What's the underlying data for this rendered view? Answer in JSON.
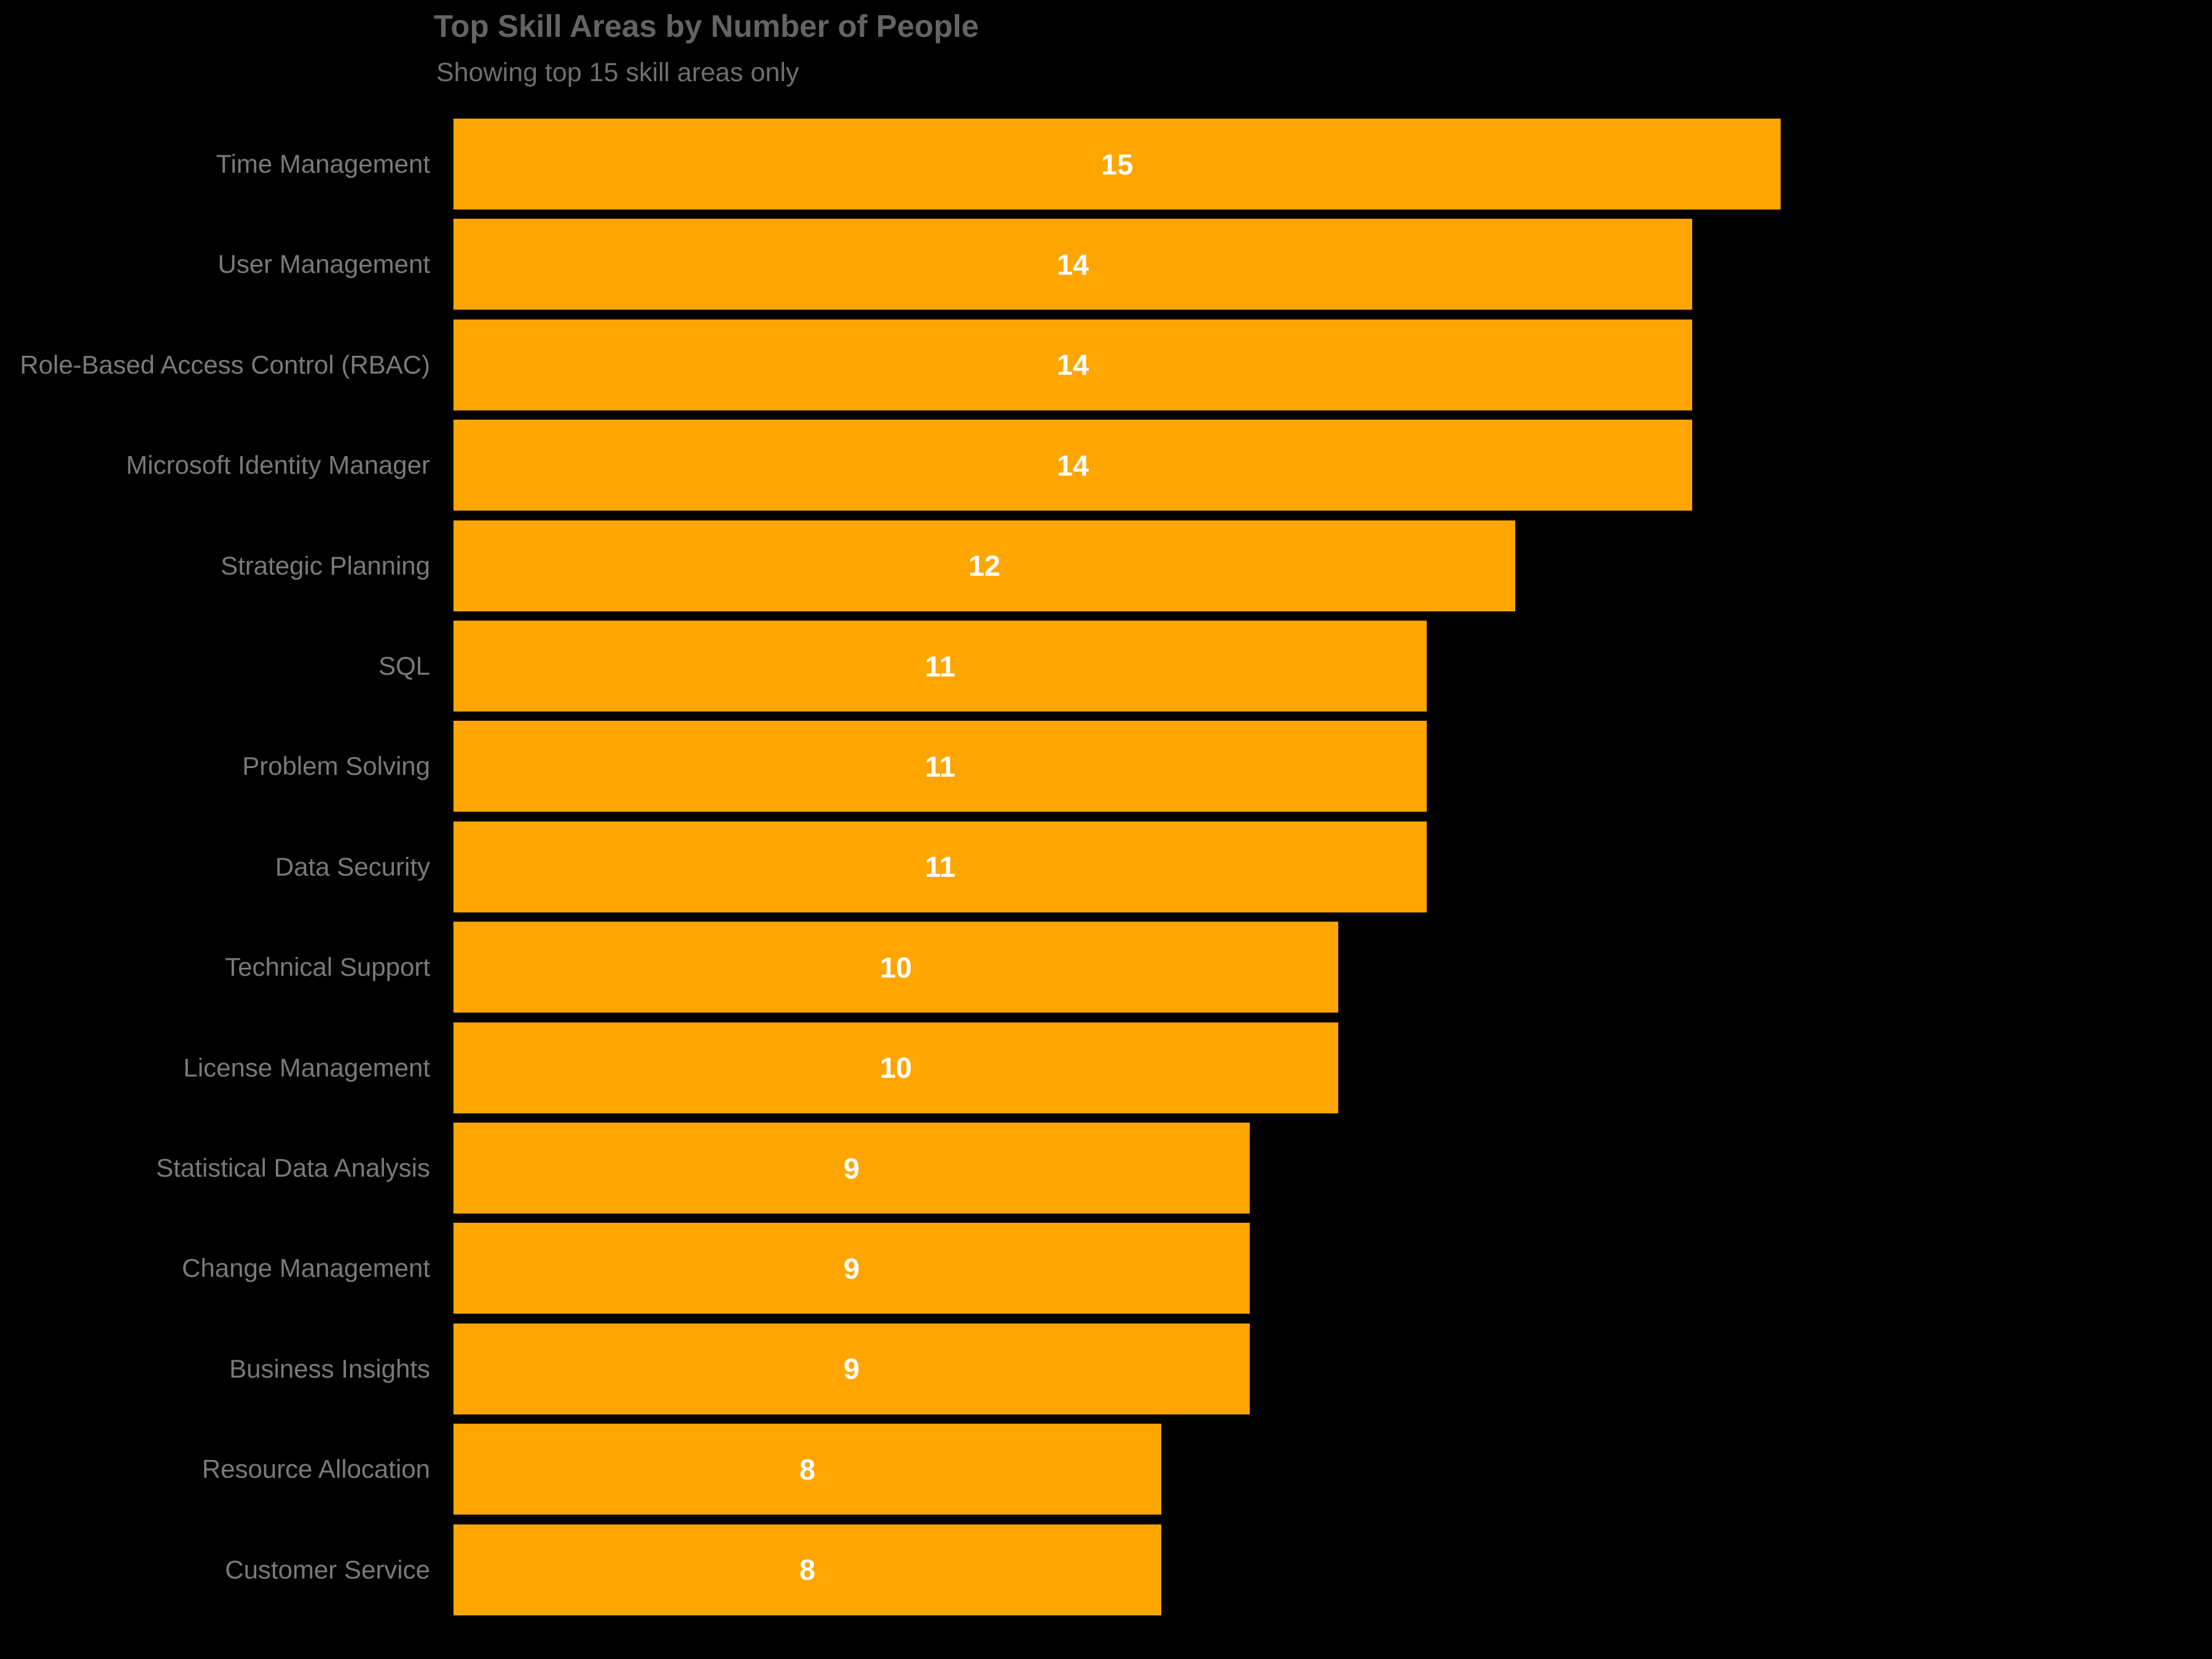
{
  "header": {
    "title": "Top Skill Areas by Number of People",
    "subtitle": "Showing top 15 skill areas only"
  },
  "colors": {
    "background": "#000000",
    "bar": "#FFA500",
    "title_text": "#646464",
    "subtitle_text": "#6F6F6F",
    "category_label_text": "#7A7A7A",
    "value_label_text": "#FFFFFF"
  },
  "chart_data": {
    "type": "bar",
    "orientation": "horizontal",
    "title": "Top Skill Areas by Number of People",
    "subtitle": "Showing top 15 skill areas only",
    "xlabel": "",
    "ylabel": "",
    "xlim": [
      0,
      15
    ],
    "grid": false,
    "legend": false,
    "axis_ticks_visible": false,
    "value_label_style": "white bold, centered inside bar",
    "categories": [
      "Time Management",
      "User Management",
      "Role-Based Access Control (RBAC)",
      "Microsoft Identity Manager",
      "Strategic Planning",
      "SQL",
      "Problem Solving",
      "Data Security",
      "Technical Support",
      "License Management",
      "Statistical Data Analysis",
      "Change Management",
      "Business Insights",
      "Resource Allocation",
      "Customer Service"
    ],
    "values": [
      15,
      14,
      14,
      14,
      12,
      11,
      11,
      11,
      10,
      10,
      9,
      9,
      9,
      8,
      8
    ]
  }
}
